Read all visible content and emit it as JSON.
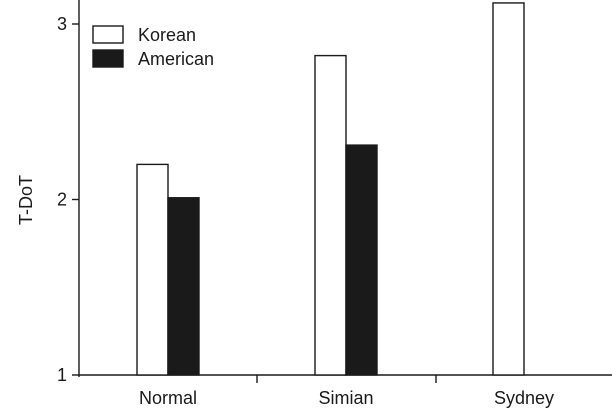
{
  "chart_data": {
    "type": "bar",
    "categories": [
      "Normal",
      "Simian",
      "Sydney"
    ],
    "series": [
      {
        "name": "Korean",
        "values": [
          2.2,
          2.82,
          3.12
        ],
        "color": "#ffffff"
      },
      {
        "name": "American",
        "values": [
          2.01,
          2.31,
          null
        ],
        "color": "#1a1a1a"
      }
    ],
    "ylabel": "T-DoT",
    "xlabel": "",
    "ylim": [
      1,
      3
    ],
    "yticks": [
      1,
      2,
      3
    ],
    "grid": false,
    "legend_position": "top-left"
  }
}
